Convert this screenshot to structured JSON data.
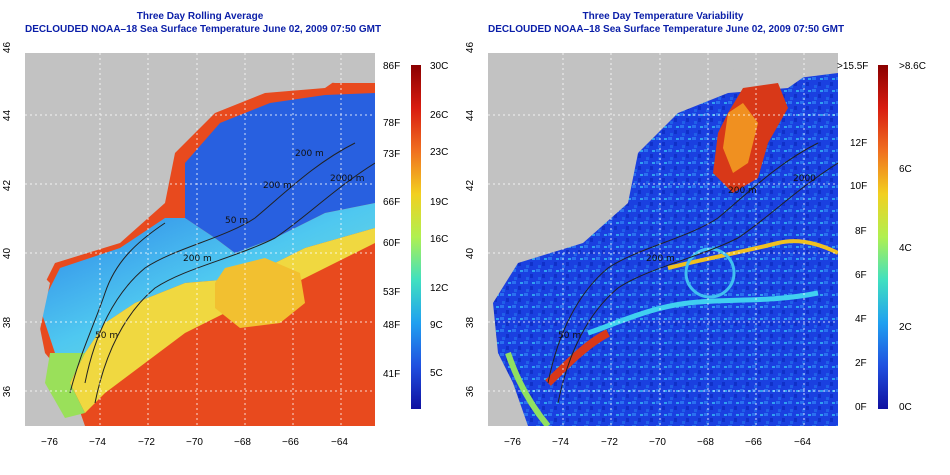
{
  "panels": [
    {
      "title": "Three Day Rolling Average",
      "subtitle": "DECLOUDED NOAA–18 Sea Surface Temperature June 02, 2009 07:50 GMT",
      "contour_labels": [
        "200 m",
        "2000 m",
        "200 m",
        "50 m",
        "200 m",
        "50 m"
      ],
      "colorbar_left": [
        "86F",
        "78F",
        "73F",
        "66F",
        "60F",
        "53F",
        "48F",
        "41F"
      ],
      "colorbar_right": [
        "30C",
        "26C",
        "23C",
        "19C",
        "16C",
        "12C",
        "9C",
        "5C"
      ]
    },
    {
      "title": "Three Day Temperature Variability",
      "subtitle": "DECLOUDED NOAA–18 Sea Surface Temperature June 02, 2009 07:50 GMT",
      "contour_labels": [
        "200 m",
        "2000",
        "200 m",
        "50 m"
      ],
      "colorbar_left": [
        ">15.5F",
        "12F",
        "10F",
        "8F",
        "6F",
        "4F",
        "2F",
        "0F"
      ],
      "colorbar_right": [
        ">8.6C",
        "6C",
        "4C",
        "2C",
        "0C"
      ]
    }
  ],
  "lon_ticks": [
    "−76",
    "−74",
    "−72",
    "−70",
    "−68",
    "−66",
    "−64"
  ],
  "lat_ticks": [
    "46",
    "44",
    "42",
    "40",
    "38",
    "36"
  ],
  "colors": {
    "title": "#0a1ea8",
    "land": "#c2c2c2",
    "warm": "#e8401c",
    "cold": "#1e3ce0"
  }
}
